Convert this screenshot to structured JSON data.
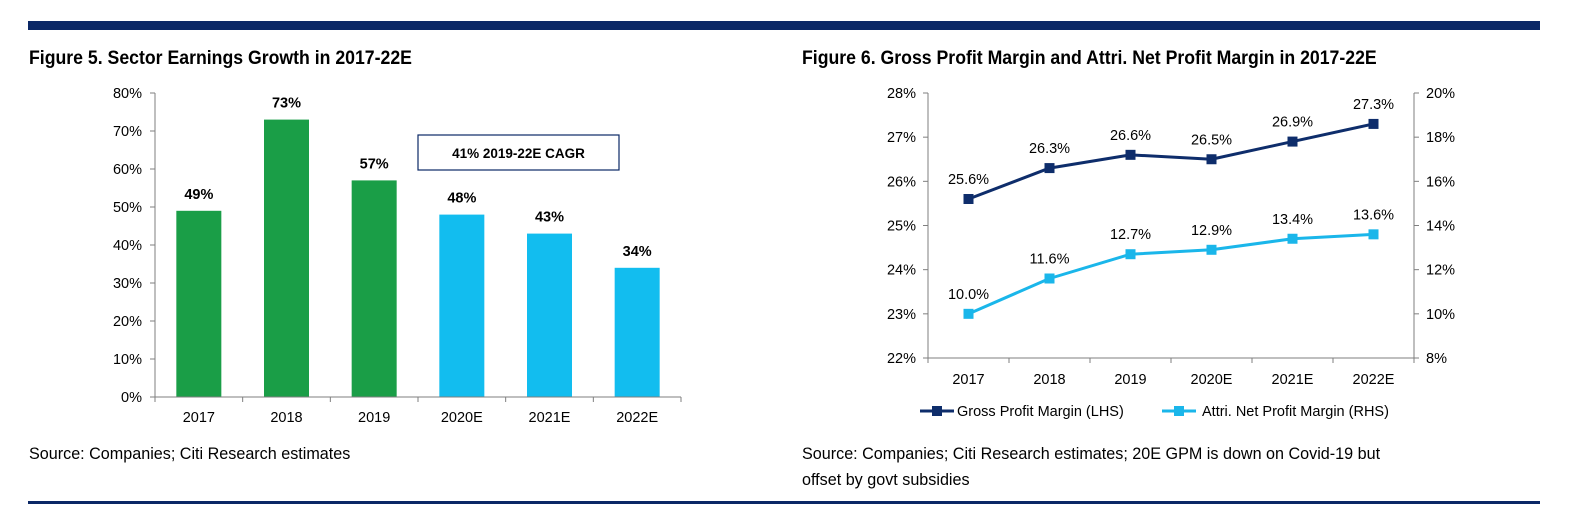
{
  "colors": {
    "rule": "#0b2866",
    "green": "#1a9e47",
    "cyan": "#12bdef",
    "navy": "#0e2d6b",
    "light_blue": "#1ab6ea",
    "axis": "#7f7f7f"
  },
  "figure5": {
    "title": "Figure 5. Sector Earnings Growth in 2017-22E",
    "source": "Source: Companies; Citi Research estimates",
    "annotation": "41% 2019-22E CAGR"
  },
  "figure6": {
    "title": "Figure 6. Gross Profit Margin and Attri. Net Profit Margin in 2017-22E",
    "source_line1": "Source: Companies; Citi Research estimates; 20E GPM is down on Covid-19 but",
    "source_line2": "offset by govt subsidies"
  },
  "chart_data": [
    {
      "type": "bar",
      "title": "Figure 5. Sector Earnings Growth in 2017-22E",
      "categories": [
        "2017",
        "2018",
        "2019",
        "2020E",
        "2021E",
        "2022E"
      ],
      "values": [
        49,
        73,
        57,
        48,
        43,
        34
      ],
      "data_labels": [
        "49%",
        "73%",
        "57%",
        "48%",
        "43%",
        "34%"
      ],
      "bar_colors": [
        "#1a9e47",
        "#1a9e47",
        "#1a9e47",
        "#12bdef",
        "#12bdef",
        "#12bdef"
      ],
      "ylim": [
        0,
        80
      ],
      "y_ticks": [
        "0%",
        "10%",
        "20%",
        "30%",
        "40%",
        "50%",
        "60%",
        "70%",
        "80%"
      ],
      "xlabel": "",
      "ylabel": "",
      "grid": false,
      "annotation": "41% 2019-22E CAGR"
    },
    {
      "type": "line",
      "title": "Figure 6. Gross Profit Margin and Attri. Net Profit Margin in 2017-22E",
      "categories": [
        "2017",
        "2018",
        "2019",
        "2020E",
        "2021E",
        "2022E"
      ],
      "series": [
        {
          "name": "Gross Profit Margin (LHS)",
          "axis": "left",
          "color": "#0e2d6b",
          "values": [
            25.6,
            26.3,
            26.6,
            26.5,
            26.9,
            27.3
          ],
          "labels": [
            "25.6%",
            "26.3%",
            "26.6%",
            "26.5%",
            "26.9%",
            "27.3%"
          ]
        },
        {
          "name": "Attri. Net Profit Margin (RHS)",
          "axis": "right",
          "color": "#1ab6ea",
          "values": [
            10.0,
            11.6,
            12.7,
            12.9,
            13.4,
            13.6
          ],
          "labels": [
            "10.0%",
            "11.6%",
            "12.7%",
            "12.9%",
            "13.4%",
            "13.6%"
          ]
        }
      ],
      "ylim_left": [
        22,
        28
      ],
      "y_ticks_left": [
        "22%",
        "23%",
        "24%",
        "25%",
        "26%",
        "27%",
        "28%"
      ],
      "ylim_right": [
        8,
        20
      ],
      "y_ticks_right": [
        "8%",
        "10%",
        "12%",
        "14%",
        "16%",
        "18%",
        "20%"
      ],
      "legend": "bottom",
      "grid": false
    }
  ]
}
